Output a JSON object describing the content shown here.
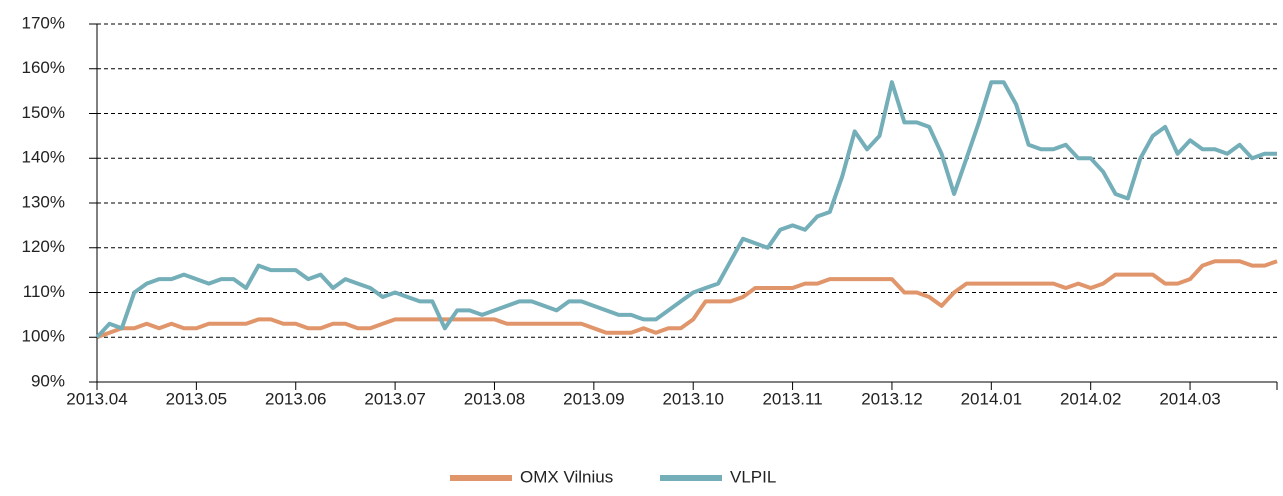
{
  "chart_data": {
    "type": "line",
    "categories": [
      "2013.04",
      null,
      null,
      null,
      null,
      null,
      null,
      null,
      "2013.05",
      null,
      null,
      null,
      null,
      null,
      null,
      null,
      "2013.06",
      null,
      null,
      null,
      null,
      null,
      null,
      null,
      "2013.07",
      null,
      null,
      null,
      null,
      null,
      null,
      null,
      "2013.08",
      null,
      null,
      null,
      null,
      null,
      null,
      null,
      "2013.09",
      null,
      null,
      null,
      null,
      null,
      null,
      null,
      "2013.10",
      null,
      null,
      null,
      null,
      null,
      null,
      null,
      "2013.11",
      null,
      null,
      null,
      null,
      null,
      null,
      null,
      "2013.12",
      null,
      null,
      null,
      null,
      null,
      null,
      null,
      "2014.01",
      null,
      null,
      null,
      null,
      null,
      null,
      null,
      "2014.02",
      null,
      null,
      null,
      null,
      null,
      null,
      null,
      "2014.03",
      null,
      null,
      null,
      null,
      null,
      null,
      null
    ],
    "series": [
      {
        "name": "OMX Vilnius",
        "color": "#e0956a",
        "values": [
          100,
          101,
          102,
          102,
          103,
          102,
          103,
          102,
          102,
          103,
          103,
          103,
          103,
          104,
          104,
          103,
          103,
          102,
          102,
          103,
          103,
          102,
          102,
          103,
          104,
          104,
          104,
          104,
          104,
          104,
          104,
          104,
          104,
          103,
          103,
          103,
          103,
          103,
          103,
          103,
          102,
          101,
          101,
          101,
          102,
          101,
          102,
          102,
          104,
          108,
          108,
          108,
          109,
          111,
          111,
          111,
          111,
          112,
          112,
          113,
          113,
          113,
          113,
          113,
          113,
          110,
          110,
          109,
          107,
          110,
          112,
          112,
          112,
          112,
          112,
          112,
          112,
          112,
          111,
          112,
          111,
          112,
          114,
          114,
          114,
          114,
          112,
          112,
          113,
          116,
          117,
          117,
          117,
          116,
          116,
          117
        ]
      },
      {
        "name": "VLPIL",
        "color": "#74aeb8",
        "values": [
          100,
          103,
          102,
          110,
          112,
          113,
          113,
          114,
          113,
          112,
          113,
          113,
          111,
          116,
          115,
          115,
          115,
          113,
          114,
          111,
          113,
          112,
          111,
          109,
          110,
          109,
          108,
          108,
          102,
          106,
          106,
          105,
          106,
          107,
          108,
          108,
          107,
          106,
          108,
          108,
          107,
          106,
          105,
          105,
          104,
          104,
          106,
          108,
          110,
          111,
          112,
          117,
          122,
          121,
          120,
          124,
          125,
          124,
          127,
          128,
          136,
          146,
          142,
          145,
          157,
          148,
          148,
          147,
          141,
          132,
          140,
          148,
          157,
          157,
          152,
          143,
          142,
          142,
          143,
          140,
          140,
          137,
          132,
          131,
          140,
          145,
          147,
          141,
          144,
          142,
          142,
          141,
          143,
          140,
          141,
          141
        ]
      }
    ],
    "ylim": [
      90,
      170
    ],
    "yticks": [
      {
        "value": 90,
        "label": "90%"
      },
      {
        "value": 100,
        "label": "100%"
      },
      {
        "value": 110,
        "label": "110%"
      },
      {
        "value": 120,
        "label": "120%"
      },
      {
        "value": 130,
        "label": "130%"
      },
      {
        "value": 140,
        "label": "140%"
      },
      {
        "value": 150,
        "label": "150%"
      },
      {
        "value": 160,
        "label": "160%"
      },
      {
        "value": 170,
        "label": "170%"
      }
    ],
    "grid": true,
    "legend": "bottom"
  }
}
